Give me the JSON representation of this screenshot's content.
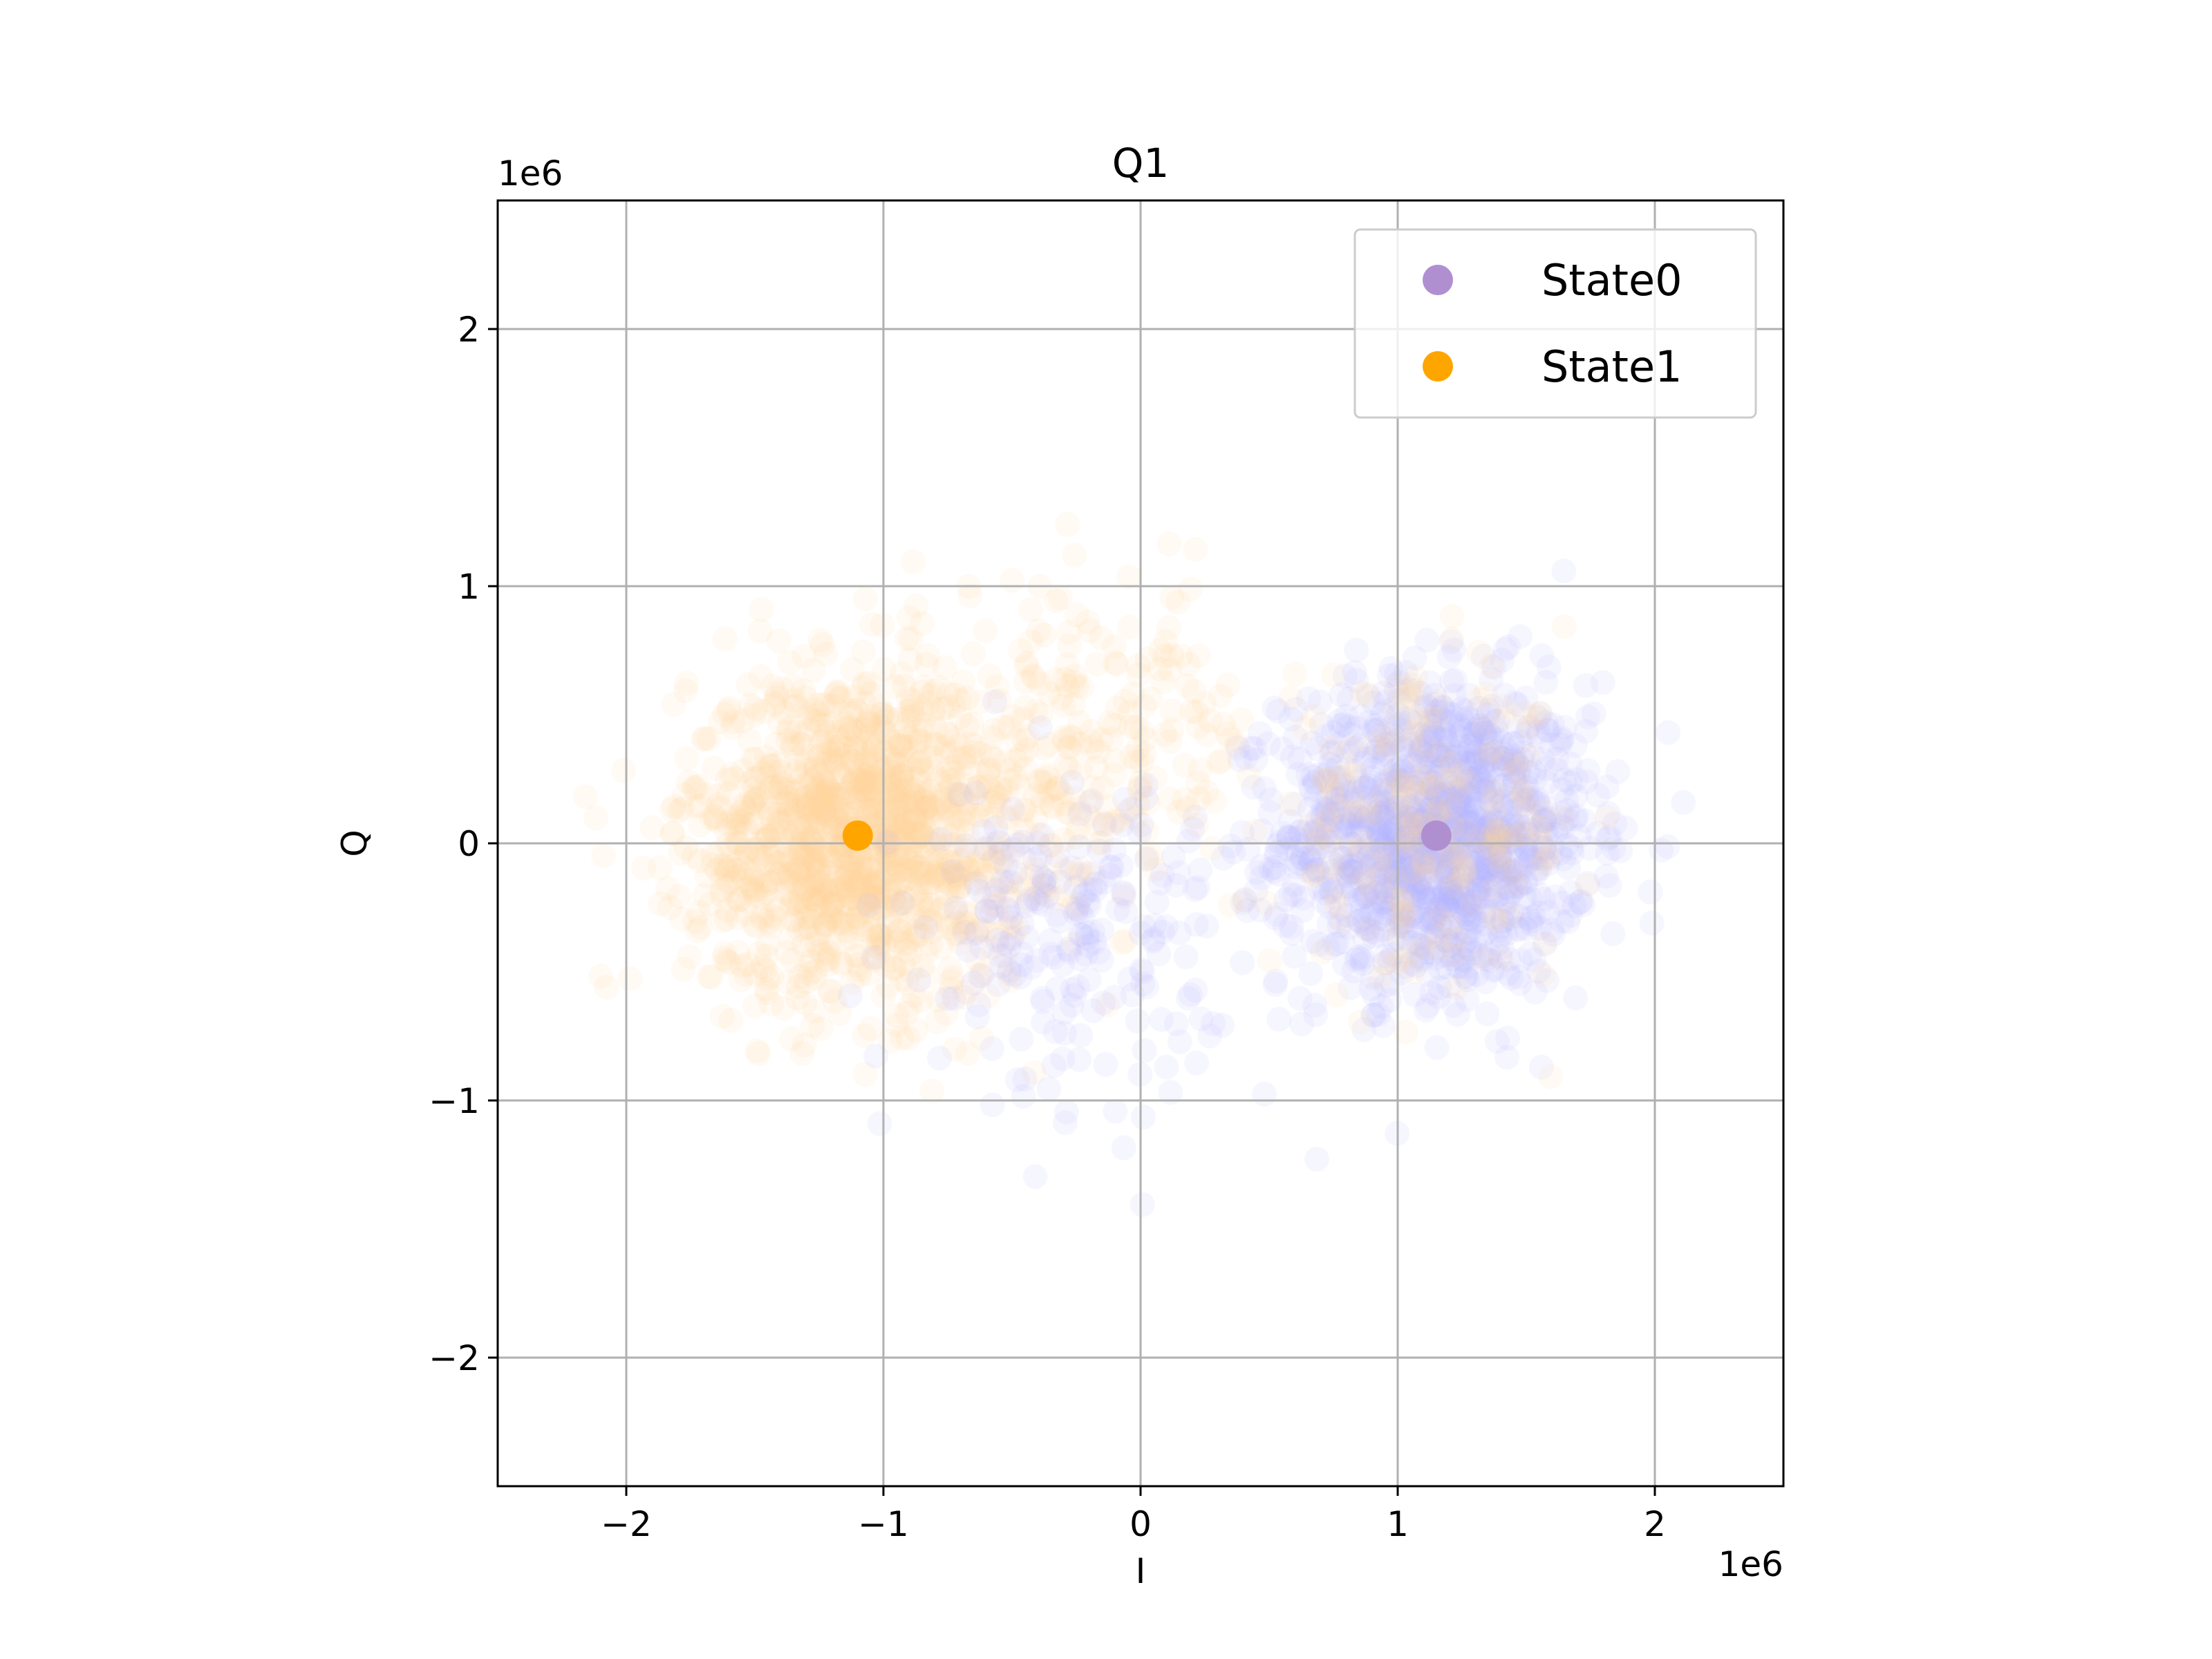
{
  "chart_data": {
    "type": "scatter",
    "title": "Q1",
    "xlabel": "I",
    "ylabel": "Q",
    "x_offset_label": "1e6",
    "y_offset_label": "1e6",
    "xlim": [
      -2500000,
      2500000
    ],
    "ylim": [
      -2500000,
      2500000
    ],
    "xticks": [
      -2000000,
      -1000000,
      0,
      1000000,
      2000000
    ],
    "yticks": [
      -2000000,
      -1000000,
      0,
      1000000,
      2000000
    ],
    "xtick_labels": [
      "−2",
      "−1",
      "0",
      "1",
      "2"
    ],
    "ytick_labels": [
      "−2",
      "−1",
      "0",
      "1",
      "2"
    ],
    "grid": true,
    "legend_position": "upper-right",
    "series": [
      {
        "name": "State0",
        "color": "#b08fd1",
        "cloud_color": "#b3b3ff",
        "center": [
          1150000,
          30000
        ],
        "spread_std": [
          300000,
          300000
        ],
        "cloud_alpha": 0.12
      },
      {
        "name": "State1",
        "color": "#ffa500",
        "cloud_color": "#ffd29e",
        "center": [
          -1100000,
          30000
        ],
        "spread_std": [
          330000,
          320000
        ],
        "cloud_alpha": 0.12
      }
    ],
    "cross_population": [
      {
        "cloud_color": "#ffd29e",
        "center": [
          1100000,
          50000
        ],
        "spread_std": [
          300000,
          280000
        ]
      },
      {
        "cloud_color": "#ffd29e",
        "center": [
          -200000,
          400000
        ],
        "spread_std": [
          350000,
          300000
        ]
      },
      {
        "cloud_color": "#b3b3ff",
        "center": [
          -300000,
          -350000
        ],
        "spread_std": [
          300000,
          300000
        ]
      }
    ]
  }
}
